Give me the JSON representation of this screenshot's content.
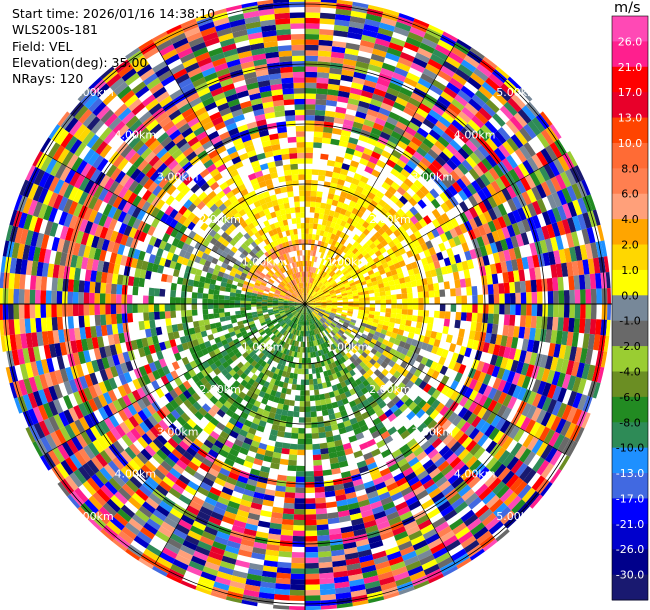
{
  "header": {
    "start_time": "Start time: 2026/01/16 14:38:10",
    "instrument": "WLS200s-181",
    "field": "Field: VEL",
    "elevation": "Elevation(deg): 35.00",
    "nrays": "NRays: 120"
  },
  "colorbar": {
    "unit": "m/s",
    "ticks": [
      "26.0",
      "21.0",
      "17.0",
      "13.0",
      "10.0",
      "8.0",
      "6.0",
      "4.0",
      "2.0",
      "1.0",
      "0.0",
      "-1.0",
      "-2.0",
      "-4.0",
      "-6.0",
      "-8.0",
      "-10.0",
      "-13.0",
      "-17.0",
      "-21.0",
      "-26.0",
      "-30.0"
    ],
    "colors": [
      "#ff49b5",
      "#ff1f8e",
      "#ff0000",
      "#e8002a",
      "#ff4400",
      "#ff6b35",
      "#ff7f50",
      "#ffa07a",
      "#ffa500",
      "#ffd700",
      "#ffff00",
      "#778899",
      "#696969",
      "#9acd32",
      "#6b8e23",
      "#228b22",
      "#2e8b57",
      "#1e90ff",
      "#4169e1",
      "#0000ff",
      "#0000cd",
      "#00008b",
      "#191970"
    ]
  },
  "chart_data": {
    "type": "ppi",
    "field": "VEL",
    "unit": "m/s",
    "elevation_deg": 35.0,
    "n_rays": 120,
    "range_rings_km": [
      1.0,
      2.0,
      3.0,
      4.0,
      5.0
    ],
    "ring_labels": [
      "1.00km",
      "2.00km",
      "3.00km",
      "4.00km",
      "5.00km"
    ],
    "max_range_km": 5.6,
    "colorbar_range": [
      -30.0,
      26.0
    ]
  }
}
